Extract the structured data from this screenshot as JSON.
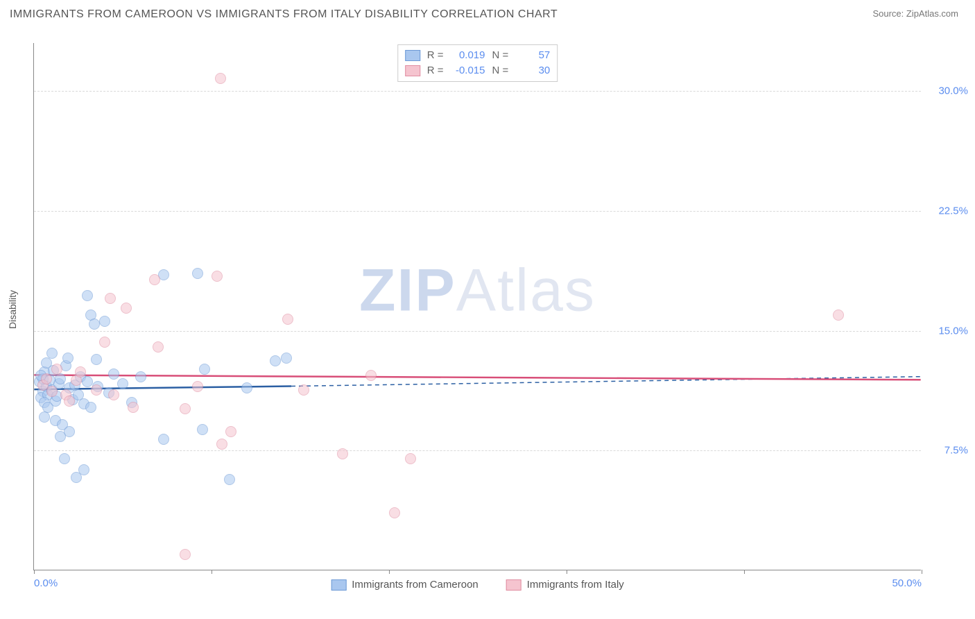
{
  "title": "IMMIGRANTS FROM CAMEROON VS IMMIGRANTS FROM ITALY DISABILITY CORRELATION CHART",
  "source_label": "Source: ",
  "source_name": "ZipAtlas.com",
  "watermark_a": "ZIP",
  "watermark_b": "Atlas",
  "ylabel": "Disability",
  "chart": {
    "type": "scatter",
    "xlim": [
      0,
      50
    ],
    "ylim": [
      0,
      33
    ],
    "x_ticks": [
      0,
      10,
      20,
      30,
      40,
      50
    ],
    "x_tick_labels_shown": {
      "0": "0.0%",
      "50": "50.0%"
    },
    "y_ticks": [
      7.5,
      15.0,
      22.5,
      30.0
    ],
    "y_tick_labels": [
      "7.5%",
      "15.0%",
      "22.5%",
      "30.0%"
    ],
    "grid_color": "#d9d9d9",
    "axis_color": "#888888",
    "background_color": "#ffffff",
    "label_color": "#5b8def",
    "point_radius": 8,
    "point_opacity": 0.55,
    "series": [
      {
        "name": "Immigrants from Cameroon",
        "fill_color": "#a9c7ef",
        "stroke_color": "#6d9ad6",
        "line_color": "#2b5fa3",
        "R": "0.019",
        "N": "57",
        "trend": {
          "x0": 0,
          "y0": 11.3,
          "x_solid_end": 14.5,
          "y_solid_end": 11.5,
          "x1": 50,
          "y1": 12.1
        },
        "points": [
          [
            0.3,
            11.8
          ],
          [
            0.5,
            11.2
          ],
          [
            0.6,
            12.4
          ],
          [
            0.4,
            10.8
          ],
          [
            0.7,
            11.5
          ],
          [
            0.5,
            12.0
          ],
          [
            0.8,
            11.0
          ],
          [
            0.6,
            10.5
          ],
          [
            0.9,
            11.9
          ],
          [
            0.4,
            12.2
          ],
          [
            1.0,
            13.6
          ],
          [
            0.7,
            13.0
          ],
          [
            1.0,
            11.3
          ],
          [
            1.2,
            10.6
          ],
          [
            1.1,
            12.5
          ],
          [
            0.8,
            10.2
          ],
          [
            0.6,
            9.6
          ],
          [
            1.4,
            11.7
          ],
          [
            1.3,
            10.9
          ],
          [
            1.5,
            12.0
          ],
          [
            1.2,
            9.4
          ],
          [
            2.0,
            11.4
          ],
          [
            1.8,
            12.8
          ],
          [
            2.2,
            10.7
          ],
          [
            1.6,
            9.1
          ],
          [
            2.3,
            11.6
          ],
          [
            1.9,
            13.3
          ],
          [
            2.5,
            11.0
          ],
          [
            2.0,
            8.7
          ],
          [
            1.5,
            8.4
          ],
          [
            2.6,
            12.1
          ],
          [
            2.8,
            10.4
          ],
          [
            3.0,
            11.8
          ],
          [
            3.2,
            16.0
          ],
          [
            3.4,
            15.4
          ],
          [
            3.0,
            17.2
          ],
          [
            4.0,
            15.6
          ],
          [
            3.5,
            13.2
          ],
          [
            3.6,
            11.5
          ],
          [
            3.2,
            10.2
          ],
          [
            4.2,
            11.1
          ],
          [
            4.5,
            12.3
          ],
          [
            5.0,
            11.7
          ],
          [
            5.5,
            10.5
          ],
          [
            6.0,
            12.1
          ],
          [
            7.3,
            8.2
          ],
          [
            7.3,
            18.5
          ],
          [
            9.2,
            18.6
          ],
          [
            9.5,
            8.8
          ],
          [
            9.6,
            12.6
          ],
          [
            11.0,
            5.7
          ],
          [
            12.0,
            11.4
          ],
          [
            13.6,
            13.1
          ],
          [
            14.2,
            13.3
          ],
          [
            2.4,
            5.8
          ],
          [
            1.7,
            7.0
          ],
          [
            2.8,
            6.3
          ]
        ]
      },
      {
        "name": "Immigrants from Italy",
        "fill_color": "#f5c4cf",
        "stroke_color": "#e08da1",
        "line_color": "#d84e78",
        "R": "-0.015",
        "N": "30",
        "trend": {
          "x0": 0,
          "y0": 12.2,
          "x_solid_end": 50,
          "y_solid_end": 11.9,
          "x1": 50,
          "y1": 11.9
        },
        "points": [
          [
            0.5,
            11.6
          ],
          [
            0.7,
            12.0
          ],
          [
            1.0,
            11.2
          ],
          [
            1.3,
            12.6
          ],
          [
            1.8,
            11.0
          ],
          [
            2.0,
            10.6
          ],
          [
            2.4,
            11.9
          ],
          [
            2.6,
            12.4
          ],
          [
            3.5,
            11.3
          ],
          [
            4.0,
            14.3
          ],
          [
            4.3,
            17.0
          ],
          [
            4.5,
            11.0
          ],
          [
            5.2,
            16.4
          ],
          [
            5.6,
            10.2
          ],
          [
            6.8,
            18.2
          ],
          [
            7.0,
            14.0
          ],
          [
            8.5,
            10.1
          ],
          [
            9.2,
            11.5
          ],
          [
            10.3,
            18.4
          ],
          [
            10.5,
            30.8
          ],
          [
            10.6,
            7.9
          ],
          [
            11.1,
            8.7
          ],
          [
            14.3,
            15.7
          ],
          [
            15.2,
            11.3
          ],
          [
            17.4,
            7.3
          ],
          [
            19.0,
            12.2
          ],
          [
            20.3,
            3.6
          ],
          [
            21.2,
            7.0
          ],
          [
            8.5,
            1.0
          ],
          [
            45.3,
            16.0
          ]
        ]
      }
    ]
  },
  "legend_top": {
    "r_label": "R  =",
    "n_label": "N  ="
  },
  "legend_bottom": [
    "Immigrants from Cameroon",
    "Immigrants from Italy"
  ]
}
